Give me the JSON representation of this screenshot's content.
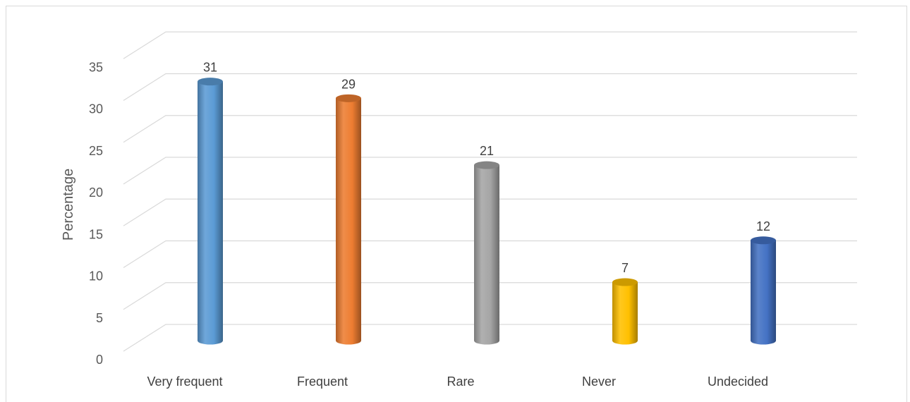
{
  "chart_data": {
    "type": "bar",
    "style": "3d-cylinder",
    "categories": [
      "Very frequent",
      "Frequent",
      "Rare",
      "Never",
      "Undecided"
    ],
    "values": [
      31,
      29,
      21,
      7,
      12
    ],
    "data_labels": [
      "31",
      "29",
      "21",
      "7",
      "12"
    ],
    "colors": [
      "#5b9bd5",
      "#ed7d31",
      "#a5a5a5",
      "#ffc000",
      "#4472c4"
    ],
    "ylabel": "Percentage",
    "xlabel": "",
    "title": "",
    "ylim": [
      0,
      35
    ],
    "yticks": [
      0,
      5,
      10,
      15,
      20,
      25,
      30,
      35
    ],
    "ytick_labels": [
      "0",
      "5",
      "10",
      "15",
      "20",
      "25",
      "30",
      "35"
    ],
    "grid": true,
    "legend": "none"
  }
}
